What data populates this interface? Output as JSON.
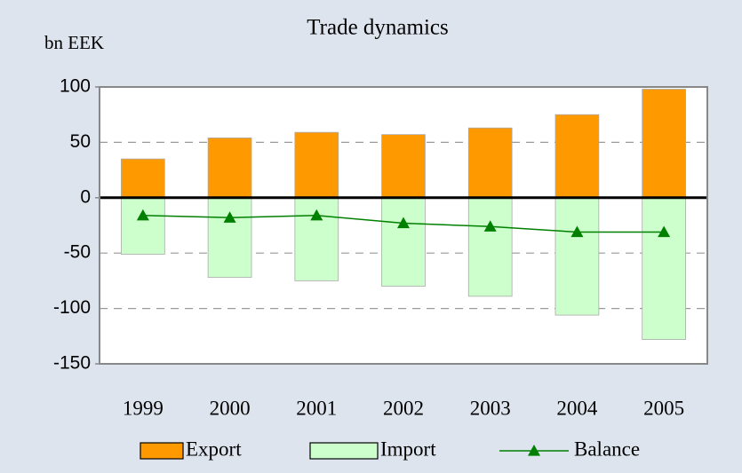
{
  "chart_data": {
    "type": "bar",
    "title": "Trade dynamics",
    "y_label": "bn EEK",
    "categories": [
      "1999",
      "2000",
      "2001",
      "2002",
      "2003",
      "2004",
      "2005"
    ],
    "series": [
      {
        "name": "Export",
        "color": "#ff9900",
        "type": "bar",
        "values": [
          35,
          54,
          59,
          57,
          63,
          75,
          98
        ]
      },
      {
        "name": "Import",
        "color": "#ccffcc",
        "type": "bar",
        "values": [
          -51,
          -72,
          -75,
          -80,
          -89,
          -106,
          -128
        ]
      },
      {
        "name": "Balance",
        "color": "#008000",
        "type": "line",
        "marker": "triangle",
        "values": [
          -16,
          -18,
          -16,
          -23,
          -26,
          -31,
          -31
        ]
      }
    ],
    "ylim": [
      -150,
      100
    ],
    "yticks": [
      -150,
      -100,
      -50,
      0,
      50,
      100
    ],
    "grid": true,
    "legend": "bottom"
  }
}
